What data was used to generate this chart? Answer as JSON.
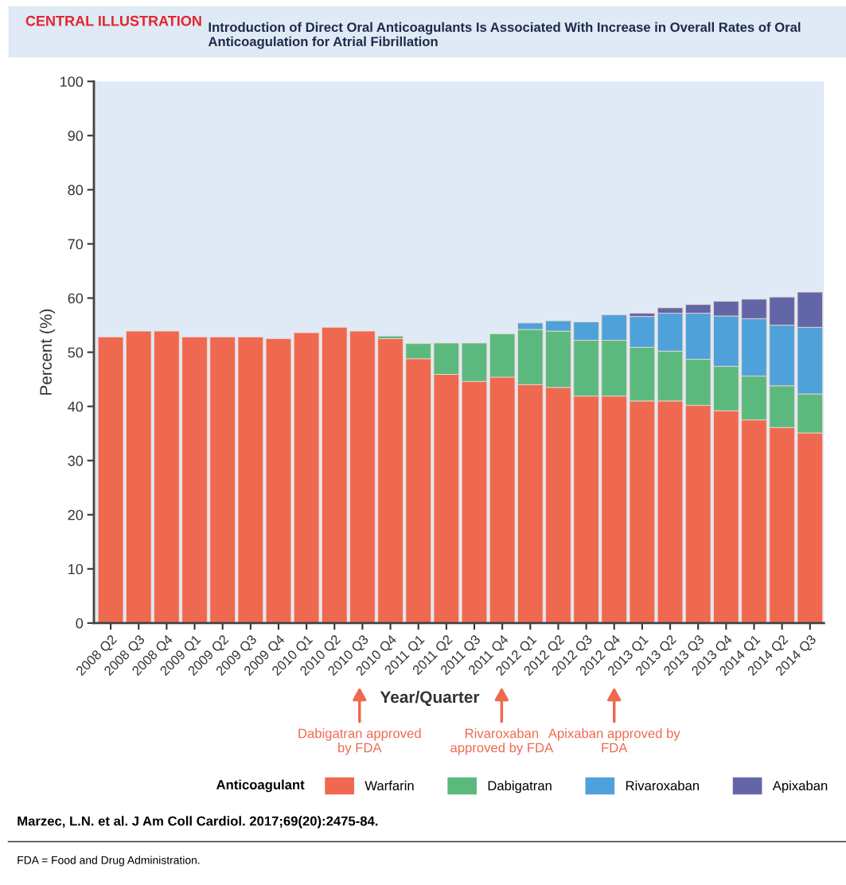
{
  "chart_data": {
    "type": "bar",
    "stacked": true,
    "subtitle": "CENTRAL ILLUSTRATION",
    "title": "Introduction of Direct Oral Anticoagulants Is Associated With Increase in Overall Rates of Oral Anticoagulation for Atrial Fibrillation",
    "xlabel": "Year/Quarter",
    "ylabel": "Percent (%)",
    "legend_title": "Anticoagulant",
    "legend": "bottom",
    "grid": false,
    "ylim": [
      0,
      100
    ],
    "yticks": [
      0,
      10,
      20,
      30,
      40,
      50,
      60,
      70,
      80,
      90,
      100
    ],
    "categories": [
      "2008 Q2",
      "2008 Q3",
      "2008 Q4",
      "2009 Q1",
      "2009 Q2",
      "2009 Q3",
      "2009 Q4",
      "2010 Q1",
      "2010 Q2",
      "2010 Q3",
      "2010 Q4",
      "2011 Q1",
      "2011 Q2",
      "2011 Q3",
      "2011 Q4",
      "2012 Q1",
      "2012 Q2",
      "2012 Q3",
      "2012 Q4",
      "2013 Q1",
      "2013 Q2",
      "2013 Q3",
      "2013 Q4",
      "2014 Q1",
      "2014 Q2",
      "2014 Q3"
    ],
    "series": [
      {
        "name": "Warfarin",
        "color": "#ef6850",
        "values": [
          52.8,
          53.9,
          53.9,
          52.8,
          52.8,
          52.8,
          52.5,
          53.6,
          54.6,
          53.9,
          52.5,
          48.8,
          45.9,
          44.6,
          45.4,
          44.0,
          43.5,
          41.9,
          41.9,
          41.0,
          41.0,
          40.2,
          39.2,
          37.5,
          36.1,
          35.1
        ]
      },
      {
        "name": "Dabigatran",
        "color": "#5cb97e",
        "values": [
          null,
          null,
          null,
          null,
          null,
          null,
          null,
          null,
          null,
          null,
          0.5,
          2.8,
          5.8,
          7.1,
          8.0,
          10.2,
          10.4,
          10.3,
          10.3,
          9.9,
          9.2,
          8.5,
          8.2,
          8.1,
          7.7,
          7.2
        ]
      },
      {
        "name": "Rivaroxaban",
        "color": "#4fa2d9",
        "values": [
          null,
          null,
          null,
          null,
          null,
          null,
          null,
          null,
          null,
          null,
          null,
          null,
          null,
          null,
          null,
          1.2,
          1.9,
          3.4,
          4.7,
          5.7,
          7.0,
          8.5,
          9.3,
          10.6,
          11.2,
          12.3
        ]
      },
      {
        "name": "Apixaban",
        "color": "#6366a6",
        "values": [
          null,
          null,
          null,
          null,
          null,
          null,
          null,
          null,
          null,
          null,
          null,
          null,
          null,
          null,
          null,
          null,
          null,
          null,
          null,
          0.6,
          1.0,
          1.6,
          2.7,
          3.6,
          5.2,
          6.5
        ]
      }
    ],
    "annotations": [
      "Dabigatran approved by FDA",
      "Rivaroxaban approved by FDA",
      "Apixaban approved by FDA",
      "Marzec, L.N. et al. J Am Coll Cardiol. 2017;69(20):2475-84.",
      "FDA = Food and Drug Administration."
    ]
  }
}
